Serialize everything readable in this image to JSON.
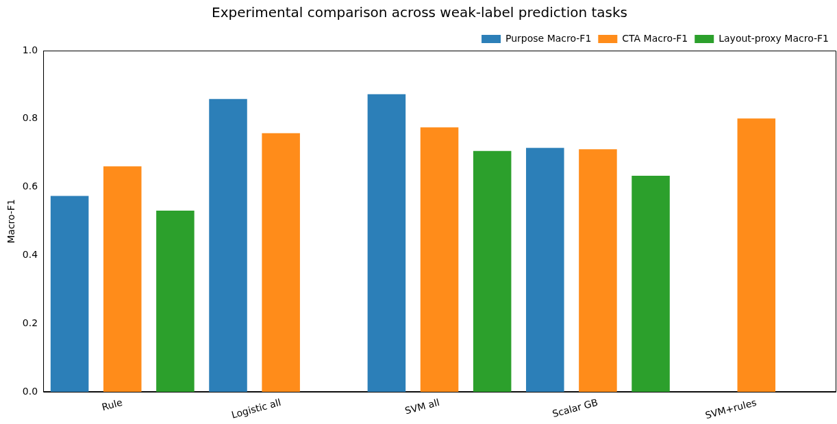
{
  "chart_data": {
    "type": "bar",
    "title": "Experimental comparison across weak-label prediction tasks",
    "ylabel": "Macro-F1",
    "categories": [
      "Rule",
      "Logistic all",
      "SVM all",
      "Scalar GB",
      "SVM+rules"
    ],
    "series": [
      {
        "name": "Purpose Macro-F1",
        "color": "#2c7fb8",
        "values": [
          0.574,
          0.858,
          0.872,
          0.715,
          null
        ]
      },
      {
        "name": "CTA Macro-F1",
        "color": "#ff8c1a",
        "values": [
          0.661,
          0.758,
          0.775,
          0.711,
          0.801
        ]
      },
      {
        "name": "Layout-proxy Macro-F1",
        "color": "#2ca02c",
        "values": [
          0.531,
          null,
          0.706,
          0.633,
          null
        ]
      }
    ],
    "ylim": [
      0,
      1
    ],
    "yticks": [
      {
        "value": 0,
        "label": "0.0"
      },
      {
        "value": 0.2,
        "label": "0.2"
      },
      {
        "value": 0.4,
        "label": "0.4"
      },
      {
        "value": 0.6,
        "label": "0.6"
      },
      {
        "value": 0.8,
        "label": "0.8"
      },
      {
        "value": 1,
        "label": "1.0"
      }
    ],
    "legend": "top right",
    "grid": false
  }
}
